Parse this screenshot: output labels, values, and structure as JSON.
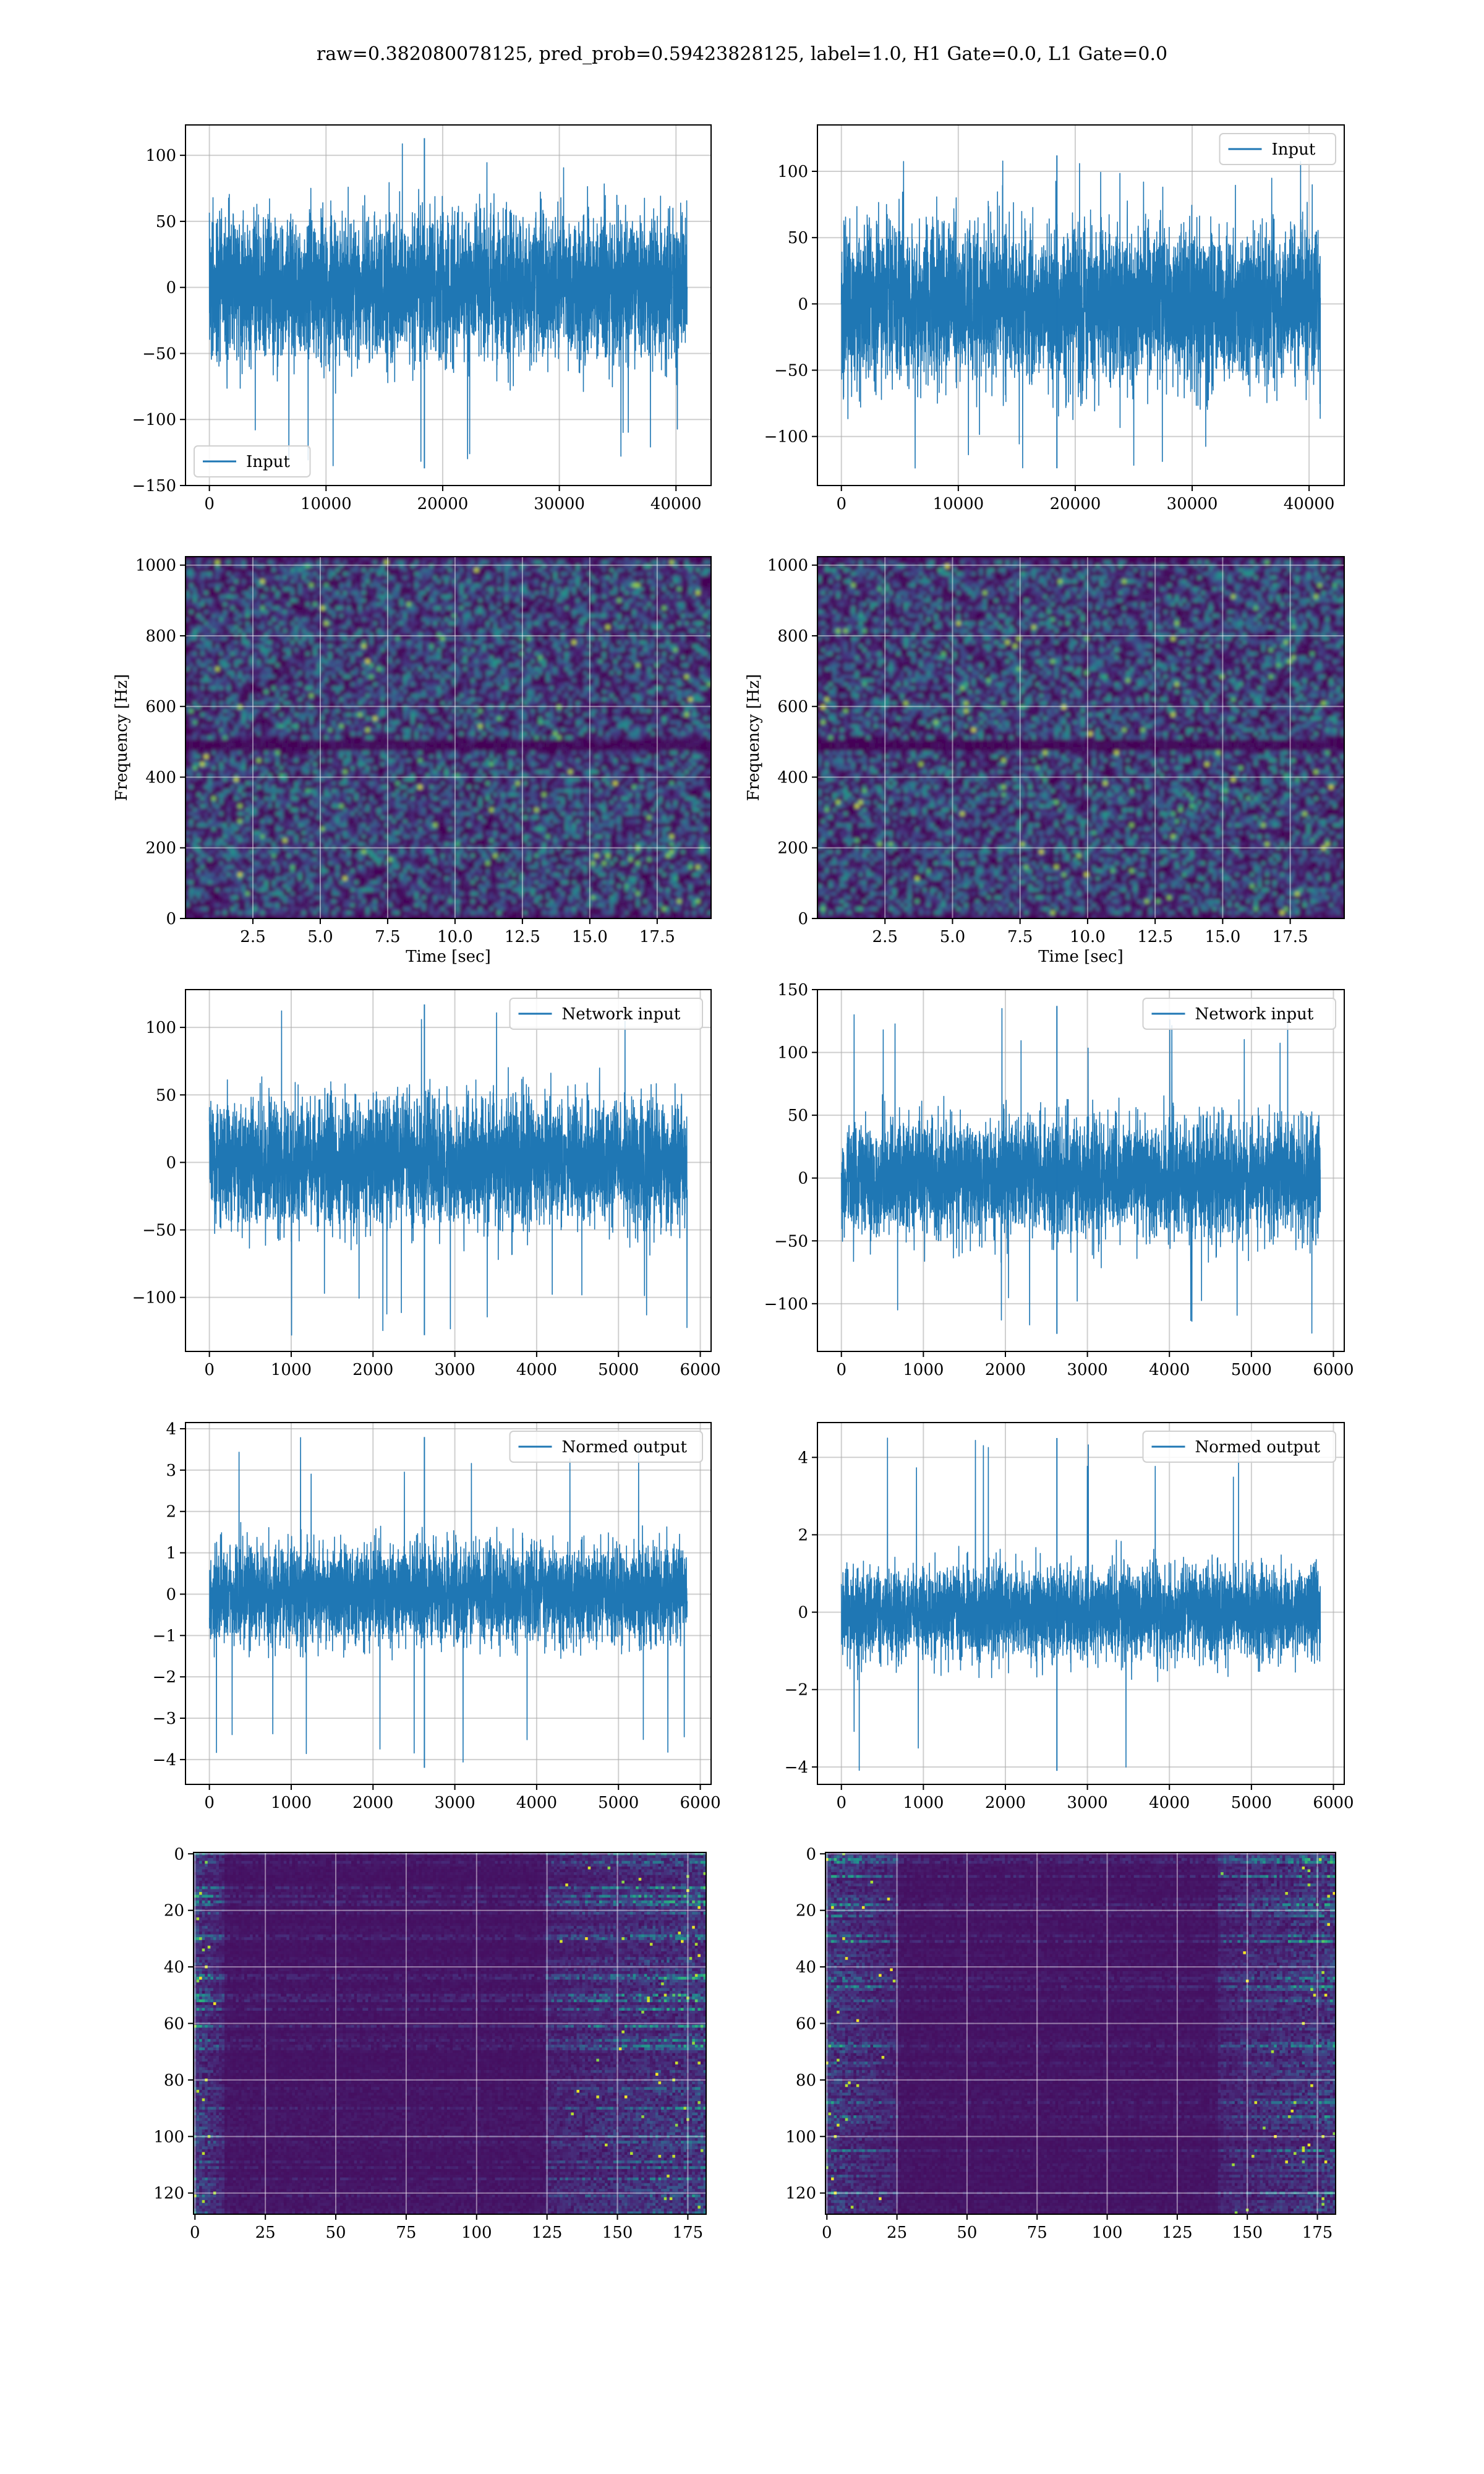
{
  "suptitle": "raw=0.382080078125, pred_prob=0.59423828125, label=1.0, H1 Gate=0.0, L1 Gate=0.0",
  "colors": {
    "series": "#1f77b4",
    "grid": "#b0b0b0",
    "viridis_dark": "#440154",
    "viridis_mid": "#3b528b",
    "viridis_teal": "#21918c",
    "viridis_green": "#5ec962",
    "viridis_yellow": "#fde725"
  },
  "chart_data": [
    {
      "id": "h1-input",
      "type": "line",
      "series": [
        {
          "name": "Input",
          "envelope": {
            "x_range": [
              0,
              40960
            ],
            "typical_amplitude": 65,
            "peak_max": 113,
            "peak_min": -137
          }
        }
      ],
      "xlim": [
        -2048,
        43008
      ],
      "ylim": [
        -150,
        123
      ],
      "xticks": [
        0,
        10000,
        20000,
        30000,
        40000
      ],
      "xticklabels": [
        "0",
        "10000",
        "20000",
        "30000",
        "40000"
      ],
      "yticks": [
        -150,
        -100,
        -50,
        0,
        50,
        100
      ],
      "yticklabels": [
        "−150",
        "−100",
        "−50",
        "0",
        "50",
        "100"
      ],
      "legend": "lower-left",
      "grid": true
    },
    {
      "id": "l1-input",
      "type": "line",
      "series": [
        {
          "name": "Input",
          "envelope": {
            "x_range": [
              0,
              40960
            ],
            "typical_amplitude": 70,
            "peak_max": 112,
            "peak_min": -124
          }
        }
      ],
      "xlim": [
        -2048,
        43008
      ],
      "ylim": [
        -137,
        135
      ],
      "xticks": [
        0,
        10000,
        20000,
        30000,
        40000
      ],
      "xticklabels": [
        "0",
        "10000",
        "20000",
        "30000",
        "40000"
      ],
      "yticks": [
        -100,
        -50,
        0,
        50,
        100
      ],
      "yticklabels": [
        "−100",
        "−50",
        "0",
        "50",
        "100"
      ],
      "legend": "upper-right",
      "grid": true
    },
    {
      "id": "h1-spectrogram",
      "type": "heatmap",
      "xlabel": "Time [sec]",
      "ylabel": "Frequency [Hz]",
      "xlim": [
        0,
        19.5
      ],
      "ylim": [
        0,
        1024
      ],
      "xticks": [
        2.5,
        5.0,
        7.5,
        10.0,
        12.5,
        15.0,
        17.5
      ],
      "xticklabels": [
        "2.5",
        "5.0",
        "7.5",
        "10.0",
        "12.5",
        "15.0",
        "17.5"
      ],
      "yticks": [
        0,
        200,
        400,
        600,
        800,
        1000
      ],
      "yticklabels": [
        "0",
        "200",
        "400",
        "600",
        "800",
        "1000"
      ],
      "colormap": "viridis",
      "dark_band_hz": 500,
      "grid": true
    },
    {
      "id": "l1-spectrogram",
      "type": "heatmap",
      "xlabel": "Time [sec]",
      "ylabel": "Frequency [Hz]",
      "xlim": [
        0,
        19.5
      ],
      "ylim": [
        0,
        1024
      ],
      "xticks": [
        2.5,
        5.0,
        7.5,
        10.0,
        12.5,
        15.0,
        17.5
      ],
      "xticklabels": [
        "2.5",
        "5.0",
        "7.5",
        "10.0",
        "12.5",
        "15.0",
        "17.5"
      ],
      "yticks": [
        0,
        200,
        400,
        600,
        800,
        1000
      ],
      "yticklabels": [
        "0",
        "200",
        "400",
        "600",
        "800",
        "1000"
      ],
      "colormap": "viridis",
      "dark_band_hz": 500,
      "grid": true
    },
    {
      "id": "h1-network-input",
      "type": "line",
      "series": [
        {
          "name": "Network input",
          "envelope": {
            "x_range": [
              0,
              5840
            ],
            "typical_amplitude": 55,
            "peak_max": 117,
            "peak_min": -128
          }
        }
      ],
      "xlim": [
        -292,
        6132
      ],
      "ylim": [
        -140,
        128
      ],
      "xticks": [
        0,
        1000,
        2000,
        3000,
        4000,
        5000,
        6000
      ],
      "xticklabels": [
        "0",
        "1000",
        "2000",
        "3000",
        "4000",
        "5000",
        "6000"
      ],
      "yticks": [
        -100,
        -50,
        0,
        50,
        100
      ],
      "yticklabels": [
        "−100",
        "−50",
        "0",
        "50",
        "100"
      ],
      "legend": "upper-right",
      "grid": true
    },
    {
      "id": "l1-network-input",
      "type": "line",
      "series": [
        {
          "name": "Network input",
          "envelope": {
            "x_range": [
              0,
              5840
            ],
            "typical_amplitude": 55,
            "peak_max": 137,
            "peak_min": -124
          }
        }
      ],
      "xlim": [
        -292,
        6132
      ],
      "ylim": [
        -138,
        150
      ],
      "xticks": [
        0,
        1000,
        2000,
        3000,
        4000,
        5000,
        6000
      ],
      "xticklabels": [
        "0",
        "1000",
        "2000",
        "3000",
        "4000",
        "5000",
        "6000"
      ],
      "yticks": [
        -100,
        -50,
        0,
        50,
        100,
        150
      ],
      "yticklabels": [
        "−100",
        "−50",
        "0",
        "50",
        "100",
        "150"
      ],
      "legend": "upper-right",
      "grid": true
    },
    {
      "id": "h1-normed-output",
      "type": "line",
      "series": [
        {
          "name": "Normed output",
          "envelope": {
            "x_range": [
              0,
              5840
            ],
            "typical_amplitude": 1.4,
            "peak_max": 3.8,
            "peak_min": -4.2
          }
        }
      ],
      "xlim": [
        -292,
        6132
      ],
      "ylim": [
        -4.6,
        4.15
      ],
      "xticks": [
        0,
        1000,
        2000,
        3000,
        4000,
        5000,
        6000
      ],
      "xticklabels": [
        "0",
        "1000",
        "2000",
        "3000",
        "4000",
        "5000",
        "6000"
      ],
      "yticks": [
        -4,
        -3,
        -2,
        -1,
        0,
        1,
        2,
        3,
        4
      ],
      "yticklabels": [
        "−4",
        "−3",
        "−2",
        "−1",
        "0",
        "1",
        "2",
        "3",
        "4"
      ],
      "legend": "upper-right",
      "grid": true
    },
    {
      "id": "l1-normed-output",
      "type": "line",
      "series": [
        {
          "name": "Normed output",
          "envelope": {
            "x_range": [
              0,
              5840
            ],
            "typical_amplitude": 1.4,
            "peak_max": 4.5,
            "peak_min": -4.1
          }
        }
      ],
      "xlim": [
        -292,
        6132
      ],
      "ylim": [
        -4.45,
        4.9
      ],
      "xticks": [
        0,
        1000,
        2000,
        3000,
        4000,
        5000,
        6000
      ],
      "xticklabels": [
        "0",
        "1000",
        "2000",
        "3000",
        "4000",
        "5000",
        "6000"
      ],
      "yticks": [
        -4,
        -2,
        0,
        2,
        4
      ],
      "yticklabels": [
        "−4",
        "−2",
        "0",
        "2",
        "4"
      ],
      "legend": "upper-right",
      "grid": true
    },
    {
      "id": "h1-feature-map",
      "type": "heatmap",
      "xlim": [
        -0.5,
        181.5
      ],
      "ylim": [
        127.5,
        -0.5
      ],
      "xticks": [
        0,
        25,
        50,
        75,
        100,
        125,
        150,
        175
      ],
      "xticklabels": [
        "0",
        "25",
        "50",
        "75",
        "100",
        "125",
        "150",
        "175"
      ],
      "yticks": [
        0,
        20,
        40,
        60,
        80,
        100,
        120
      ],
      "yticklabels": [
        "0",
        "20",
        "40",
        "60",
        "80",
        "100",
        "120"
      ],
      "colormap": "viridis",
      "hot_regions": [
        [
          0,
          10
        ],
        [
          125,
          181
        ]
      ],
      "grid": true
    },
    {
      "id": "l1-feature-map",
      "type": "heatmap",
      "xlim": [
        -0.5,
        181.5
      ],
      "ylim": [
        127.5,
        -0.5
      ],
      "xticks": [
        0,
        25,
        50,
        75,
        100,
        125,
        150,
        175
      ],
      "xticklabels": [
        "0",
        "25",
        "50",
        "75",
        "100",
        "125",
        "150",
        "175"
      ],
      "yticks": [
        0,
        20,
        40,
        60,
        80,
        100,
        120
      ],
      "yticklabels": [
        "0",
        "20",
        "40",
        "60",
        "80",
        "100",
        "120"
      ],
      "colormap": "viridis",
      "hot_regions": [
        [
          0,
          25
        ],
        [
          140,
          181
        ]
      ],
      "grid": true
    }
  ]
}
